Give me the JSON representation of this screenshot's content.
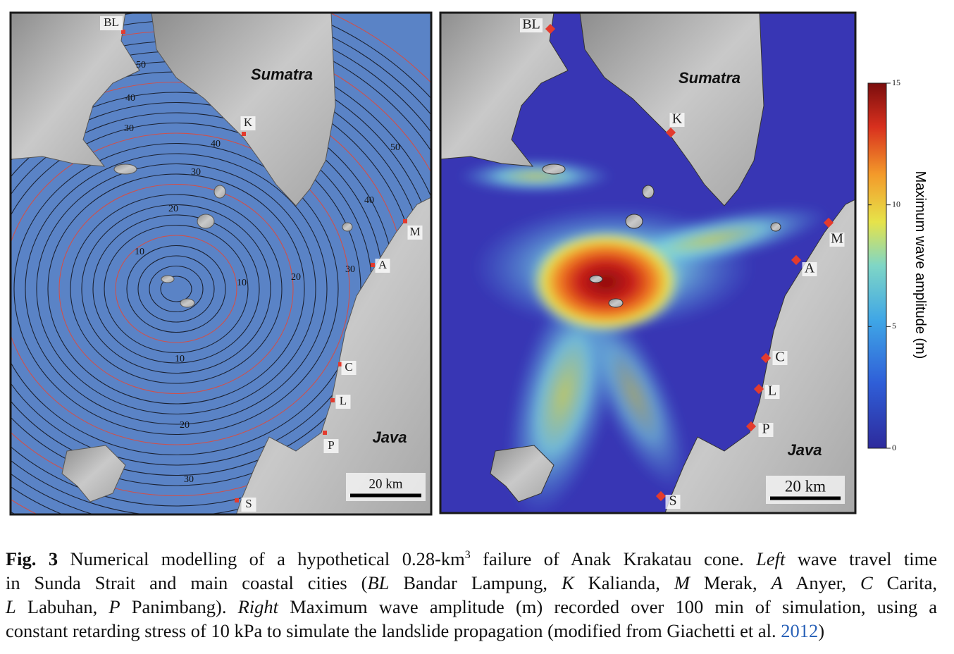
{
  "left_panel": {
    "cities": [
      "BL",
      "K",
      "M",
      "A",
      "C",
      "L",
      "P",
      "S"
    ],
    "islands": [
      "Sumatra",
      "Java"
    ],
    "scale": "20 km",
    "contour_labels": [
      50,
      40,
      30,
      40,
      30,
      20,
      10,
      10,
      20,
      30,
      40,
      50,
      10,
      20,
      30
    ]
  },
  "right_panel": {
    "cities": [
      "BL",
      "K",
      "M",
      "A",
      "C",
      "L",
      "P",
      "S"
    ],
    "islands": [
      "Sumatra",
      "Java"
    ],
    "scale": "20 km",
    "colorbar": {
      "title": "Maximum wave amplitude (m)",
      "range": [
        0,
        15
      ],
      "ticks": [
        0,
        5,
        10,
        15
      ]
    }
  },
  "caption": {
    "lines": [
      [
        "Fig. 3",
        " Numerical modelling of a hypothetical 0.28-km",
        "3",
        " failure of Anak Krakatau cone. ",
        "Left",
        " wave travel time"
      ],
      [
        "in Sunda Strait and main coastal cities (",
        "BL",
        " Bandar Lampung, ",
        "K",
        " Kalianda, ",
        "M",
        " Merak, ",
        "A",
        " Anyer, ",
        "C",
        " Carita,"
      ],
      [
        "L",
        " Labuhan, ",
        "P",
        " Panimbang). ",
        "Right",
        " Maximum wave amplitude (m) recorded over 100 min of simulation, using a"
      ],
      [
        "constant retarding stress of 10 kPa to simulate the landslide propagation (modified from Giachetti et al. ",
        "2012",
        ")"
      ]
    ]
  }
}
